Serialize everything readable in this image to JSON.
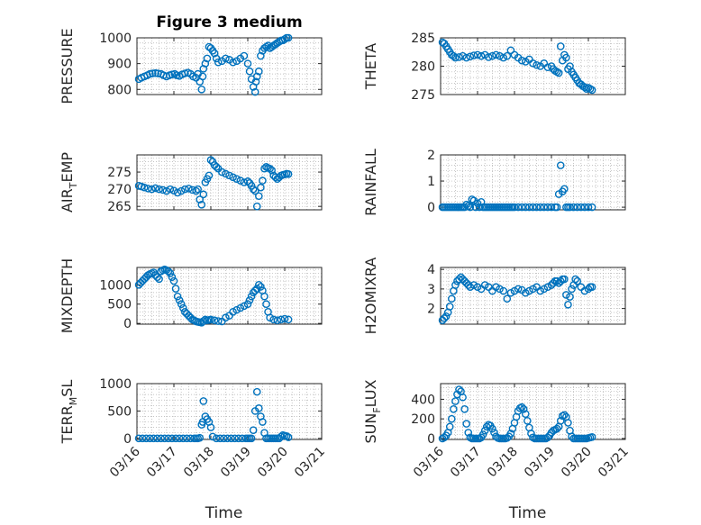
{
  "figure_title": "Figure 3 medium",
  "colors": {
    "marker": "#0072BD",
    "axis": "#262626",
    "grid": "#b0b0b0"
  },
  "chart_data": [
    {
      "type": "scatter",
      "id": "pressure",
      "title": "Figure 3 medium",
      "ylabel": [
        "PRESSURE"
      ],
      "ylim": [
        780,
        1000
      ],
      "yticks": [
        800,
        900,
        1000
      ],
      "xlim": [
        "03/16",
        "03/21"
      ],
      "xticks": [
        "03/16",
        "03/17",
        "03/18",
        "03/19",
        "03/20",
        "03/21"
      ],
      "xlabel": "",
      "grid": true,
      "marker": "circle",
      "x": [
        0.05,
        0.12,
        0.2,
        0.28,
        0.35,
        0.42,
        0.5,
        0.57,
        0.65,
        0.72,
        0.8,
        0.88,
        0.95,
        1.02,
        1.08,
        1.15,
        1.22,
        1.3,
        1.38,
        1.45,
        1.52,
        1.6,
        1.65,
        1.7,
        1.75,
        1.78,
        1.8,
        1.85,
        1.9,
        1.95,
        2.0,
        2.05,
        2.1,
        2.15,
        2.2,
        2.3,
        2.4,
        2.5,
        2.6,
        2.7,
        2.8,
        2.9,
        3.0,
        3.05,
        3.1,
        3.15,
        3.2,
        3.22,
        3.25,
        3.3,
        3.35,
        3.4,
        3.45,
        3.5,
        3.55,
        3.6,
        3.65,
        3.7,
        3.75,
        3.8,
        3.85,
        3.9,
        3.95,
        4.0,
        4.05,
        4.1
      ],
      "y": [
        840,
        845,
        850,
        855,
        860,
        862,
        863,
        862,
        860,
        855,
        850,
        855,
        858,
        860,
        855,
        852,
        858,
        862,
        865,
        860,
        850,
        845,
        860,
        830,
        800,
        850,
        880,
        900,
        920,
        965,
        960,
        950,
        940,
        920,
        905,
        910,
        920,
        915,
        905,
        910,
        920,
        930,
        900,
        870,
        840,
        810,
        790,
        830,
        850,
        870,
        930,
        950,
        960,
        965,
        970,
        960,
        965,
        970,
        975,
        980,
        985,
        990,
        990,
        995,
        1000,
        1000
      ]
    },
    {
      "type": "scatter",
      "id": "theta",
      "ylabel": [
        "THETA"
      ],
      "ylim": [
        275,
        285
      ],
      "yticks": [
        275,
        280,
        285
      ],
      "xlim": [
        "03/16",
        "03/21"
      ],
      "xticks": [
        "03/16",
        "03/17",
        "03/18",
        "03/19",
        "03/20",
        "03/21"
      ],
      "xlabel": "",
      "grid": true,
      "marker": "circle",
      "x": [
        0.05,
        0.1,
        0.15,
        0.2,
        0.25,
        0.3,
        0.35,
        0.4,
        0.5,
        0.6,
        0.7,
        0.8,
        0.9,
        1.0,
        1.1,
        1.2,
        1.3,
        1.4,
        1.5,
        1.6,
        1.7,
        1.8,
        1.9,
        2.0,
        2.1,
        2.2,
        2.3,
        2.4,
        2.5,
        2.6,
        2.7,
        2.8,
        2.9,
        3.0,
        3.05,
        3.1,
        3.15,
        3.2,
        3.25,
        3.3,
        3.35,
        3.4,
        3.45,
        3.5,
        3.55,
        3.6,
        3.65,
        3.7,
        3.75,
        3.8,
        3.85,
        3.9,
        3.95,
        4.0,
        4.05,
        4.1
      ],
      "y": [
        284.2,
        284.0,
        283.5,
        283.0,
        282.5,
        282.0,
        281.8,
        281.5,
        281.6,
        281.8,
        281.5,
        281.7,
        281.9,
        282.0,
        281.8,
        282.0,
        281.6,
        281.8,
        282.0,
        281.8,
        281.5,
        281.8,
        282.8,
        282.0,
        281.5,
        281.0,
        280.8,
        281.2,
        280.5,
        280.2,
        280.0,
        280.5,
        279.8,
        280.0,
        279.5,
        279.2,
        279.0,
        278.8,
        283.5,
        281.0,
        282.0,
        281.5,
        279.5,
        280.0,
        279.0,
        278.5,
        278.0,
        277.5,
        277.0,
        276.8,
        276.5,
        276.3,
        276.0,
        276.2,
        276.0,
        275.8
      ]
    },
    {
      "type": "scatter",
      "id": "air_temp",
      "ylabel": [
        "AIR",
        "T",
        "EMP"
      ],
      "ylim": [
        264,
        280
      ],
      "yticks": [
        265,
        270,
        275
      ],
      "xlim": [
        "03/16",
        "03/21"
      ],
      "xticks": [
        "03/16",
        "03/17",
        "03/18",
        "03/19",
        "03/20",
        "03/21"
      ],
      "xlabel": "",
      "grid": true,
      "marker": "circle",
      "x": [
        0.05,
        0.12,
        0.2,
        0.3,
        0.4,
        0.5,
        0.6,
        0.7,
        0.8,
        0.9,
        1.0,
        1.1,
        1.2,
        1.3,
        1.4,
        1.5,
        1.6,
        1.65,
        1.7,
        1.75,
        1.8,
        1.85,
        1.9,
        1.95,
        2.0,
        2.05,
        2.1,
        2.15,
        2.2,
        2.3,
        2.4,
        2.5,
        2.6,
        2.7,
        2.8,
        2.9,
        3.0,
        3.05,
        3.1,
        3.15,
        3.2,
        3.25,
        3.3,
        3.35,
        3.4,
        3.45,
        3.5,
        3.55,
        3.6,
        3.65,
        3.7,
        3.75,
        3.8,
        3.85,
        3.9,
        3.95,
        4.0,
        4.05,
        4.1
      ],
      "y": [
        271.0,
        270.8,
        270.5,
        270.2,
        270.0,
        270.3,
        270.0,
        269.8,
        269.5,
        270.0,
        269.6,
        269.0,
        269.5,
        270.0,
        270.2,
        269.8,
        269.5,
        270.0,
        267.0,
        265.5,
        268.5,
        272.0,
        273.0,
        274.0,
        278.5,
        278.0,
        277.0,
        276.5,
        276.0,
        275.0,
        274.5,
        274.0,
        273.5,
        273.0,
        272.5,
        272.0,
        272.3,
        271.8,
        271.0,
        270.0,
        269.5,
        265.0,
        268.0,
        270.5,
        272.5,
        276.0,
        276.5,
        276.2,
        276.0,
        275.5,
        274.0,
        273.5,
        273.0,
        273.5,
        274.0,
        274.2,
        274.3,
        274.5,
        274.4
      ]
    },
    {
      "type": "scatter",
      "id": "rainfall",
      "ylabel": [
        "RAINFALL"
      ],
      "ylim": [
        -0.1,
        2
      ],
      "yticks": [
        0,
        1,
        2
      ],
      "xlim": [
        "03/16",
        "03/21"
      ],
      "xticks": [
        "03/16",
        "03/17",
        "03/18",
        "03/19",
        "03/20",
        "03/21"
      ],
      "xlabel": "",
      "grid": true,
      "marker": "circle",
      "x": [
        0.05,
        0.1,
        0.15,
        0.2,
        0.25,
        0.3,
        0.35,
        0.4,
        0.45,
        0.5,
        0.55,
        0.6,
        0.65,
        0.7,
        0.75,
        0.8,
        0.85,
        0.9,
        0.95,
        1.0,
        1.05,
        1.1,
        1.15,
        1.2,
        1.25,
        1.3,
        1.35,
        1.4,
        1.45,
        1.5,
        1.55,
        1.6,
        1.65,
        1.7,
        1.75,
        1.8,
        1.85,
        1.9,
        1.95,
        2.0,
        2.1,
        2.2,
        2.3,
        2.4,
        2.5,
        2.6,
        2.7,
        2.8,
        2.9,
        3.0,
        3.1,
        3.15,
        3.2,
        3.25,
        3.3,
        3.35,
        3.4,
        3.45,
        3.5,
        3.6,
        3.7,
        3.8,
        3.9,
        4.0,
        4.1
      ],
      "y": [
        0,
        0,
        0,
        0,
        0,
        0,
        0,
        0,
        0,
        0,
        0,
        0,
        0,
        0.1,
        0.05,
        0,
        0.3,
        0.25,
        0,
        0.15,
        0,
        0.2,
        0,
        0,
        0,
        0,
        0,
        0,
        0,
        0,
        0,
        0,
        0,
        0,
        0,
        0,
        0,
        0,
        0,
        0,
        0,
        0,
        0,
        0,
        0,
        0,
        0,
        0,
        0,
        0,
        0,
        0,
        0.5,
        1.6,
        0.6,
        0.7,
        0,
        0,
        0,
        0,
        0,
        0,
        0,
        0,
        0
      ]
    },
    {
      "type": "scatter",
      "id": "mixdepth",
      "ylabel": [
        "MIXDEPTH"
      ],
      "ylim": [
        -20,
        1450
      ],
      "yticks": [
        0,
        500,
        1000
      ],
      "xlim": [
        "03/16",
        "03/21"
      ],
      "xticks": [
        "03/16",
        "03/17",
        "03/18",
        "03/19",
        "03/20",
        "03/21"
      ],
      "xlabel": "",
      "grid": true,
      "marker": "circle",
      "x": [
        0.05,
        0.1,
        0.15,
        0.2,
        0.25,
        0.3,
        0.35,
        0.4,
        0.45,
        0.5,
        0.55,
        0.6,
        0.65,
        0.7,
        0.75,
        0.8,
        0.85,
        0.9,
        0.95,
        1.0,
        1.05,
        1.1,
        1.15,
        1.2,
        1.25,
        1.3,
        1.35,
        1.4,
        1.45,
        1.5,
        1.55,
        1.6,
        1.65,
        1.7,
        1.75,
        1.8,
        1.85,
        1.9,
        1.95,
        2.0,
        2.1,
        2.2,
        2.3,
        2.4,
        2.5,
        2.6,
        2.7,
        2.8,
        2.9,
        3.0,
        3.05,
        3.1,
        3.15,
        3.2,
        3.25,
        3.3,
        3.35,
        3.4,
        3.45,
        3.5,
        3.55,
        3.6,
        3.7,
        3.8,
        3.9,
        4.0,
        4.1
      ],
      "y": [
        1000,
        1050,
        1100,
        1150,
        1200,
        1250,
        1280,
        1300,
        1320,
        1250,
        1200,
        1150,
        1350,
        1380,
        1400,
        1380,
        1350,
        1300,
        1200,
        1100,
        900,
        700,
        600,
        500,
        400,
        300,
        250,
        200,
        150,
        100,
        80,
        50,
        40,
        30,
        20,
        60,
        100,
        80,
        90,
        100,
        80,
        60,
        50,
        150,
        200,
        300,
        350,
        400,
        450,
        500,
        600,
        700,
        800,
        850,
        900,
        1000,
        950,
        850,
        700,
        500,
        300,
        150,
        100,
        80,
        100,
        120,
        100
      ]
    },
    {
      "type": "scatter",
      "id": "h2omixra",
      "ylabel": [
        "H2OMIXRA"
      ],
      "ylim": [
        1.2,
        4.1
      ],
      "yticks": [
        2,
        3,
        4
      ],
      "xlim": [
        "03/16",
        "03/21"
      ],
      "xticks": [
        "03/16",
        "03/17",
        "03/18",
        "03/19",
        "03/20",
        "03/21"
      ],
      "xlabel": "",
      "grid": true,
      "marker": "circle",
      "x": [
        0.05,
        0.1,
        0.15,
        0.2,
        0.25,
        0.3,
        0.35,
        0.4,
        0.45,
        0.5,
        0.55,
        0.6,
        0.65,
        0.7,
        0.75,
        0.8,
        0.9,
        1.0,
        1.1,
        1.2,
        1.3,
        1.4,
        1.5,
        1.6,
        1.7,
        1.8,
        1.9,
        2.0,
        2.1,
        2.2,
        2.3,
        2.4,
        2.5,
        2.6,
        2.7,
        2.8,
        2.9,
        3.0,
        3.05,
        3.1,
        3.15,
        3.2,
        3.25,
        3.3,
        3.35,
        3.4,
        3.45,
        3.5,
        3.55,
        3.6,
        3.65,
        3.7,
        3.8,
        3.9,
        4.0,
        4.05,
        4.1
      ],
      "y": [
        1.4,
        1.5,
        1.6,
        1.8,
        2.1,
        2.5,
        2.9,
        3.2,
        3.4,
        3.5,
        3.6,
        3.5,
        3.4,
        3.3,
        3.2,
        3.1,
        3.2,
        3.1,
        3.0,
        3.2,
        3.1,
        2.9,
        3.1,
        3.0,
        2.9,
        2.5,
        2.8,
        2.9,
        3.0,
        2.95,
        2.8,
        2.9,
        3.0,
        3.1,
        2.9,
        3.0,
        3.1,
        3.2,
        3.3,
        3.4,
        3.4,
        3.3,
        3.4,
        3.5,
        3.5,
        2.7,
        2.2,
        2.6,
        3.0,
        3.2,
        3.5,
        3.4,
        3.1,
        2.9,
        3.0,
        3.1,
        3.1
      ]
    },
    {
      "type": "scatter",
      "id": "terr_msl",
      "ylabel": [
        "TERR",
        "M",
        "SL"
      ],
      "ylim": [
        -20,
        1000
      ],
      "yticks": [
        0,
        500,
        1000
      ],
      "xlim": [
        "03/16",
        "03/21"
      ],
      "xticks": [
        "03/16",
        "03/17",
        "03/18",
        "03/19",
        "03/20",
        "03/21"
      ],
      "xlabel": "Time",
      "grid": true,
      "marker": "circle",
      "x": [
        0.05,
        0.15,
        0.25,
        0.35,
        0.45,
        0.55,
        0.65,
        0.75,
        0.85,
        0.95,
        1.05,
        1.15,
        1.25,
        1.35,
        1.45,
        1.55,
        1.6,
        1.65,
        1.7,
        1.75,
        1.78,
        1.8,
        1.85,
        1.9,
        1.95,
        2.0,
        2.05,
        2.15,
        2.25,
        2.35,
        2.45,
        2.55,
        2.65,
        2.75,
        2.85,
        2.95,
        3.0,
        3.05,
        3.1,
        3.15,
        3.2,
        3.25,
        3.3,
        3.35,
        3.4,
        3.45,
        3.5,
        3.55,
        3.6,
        3.65,
        3.7,
        3.75,
        3.8,
        3.85,
        3.9,
        3.95,
        4.0,
        4.05,
        4.1
      ],
      "y": [
        0,
        0,
        0,
        0,
        0,
        0,
        0,
        0,
        0,
        0,
        0,
        0,
        0,
        0,
        0,
        0,
        0,
        0,
        10,
        250,
        300,
        680,
        400,
        350,
        300,
        200,
        30,
        0,
        0,
        0,
        0,
        0,
        0,
        0,
        0,
        0,
        0,
        0,
        0,
        150,
        500,
        850,
        550,
        400,
        300,
        100,
        0,
        0,
        0,
        0,
        0,
        0,
        0,
        0,
        30,
        60,
        50,
        40,
        20
      ]
    },
    {
      "type": "scatter",
      "id": "sun_flux",
      "ylabel": [
        "SUN",
        "F",
        "LUX"
      ],
      "ylim": [
        -10,
        560
      ],
      "yticks": [
        0,
        200,
        400
      ],
      "xlim": [
        "03/16",
        "03/21"
      ],
      "xticks": [
        "03/16",
        "03/17",
        "03/18",
        "03/19",
        "03/20",
        "03/21"
      ],
      "xlabel": "Time",
      "grid": true,
      "marker": "circle",
      "x": [
        0.05,
        0.1,
        0.15,
        0.2,
        0.25,
        0.3,
        0.35,
        0.4,
        0.45,
        0.5,
        0.55,
        0.6,
        0.65,
        0.7,
        0.75,
        0.8,
        0.85,
        0.9,
        0.95,
        1.0,
        1.05,
        1.1,
        1.15,
        1.2,
        1.25,
        1.3,
        1.35,
        1.4,
        1.45,
        1.5,
        1.55,
        1.6,
        1.65,
        1.7,
        1.75,
        1.8,
        1.85,
        1.9,
        1.95,
        2.0,
        2.05,
        2.1,
        2.15,
        2.2,
        2.25,
        2.3,
        2.35,
        2.4,
        2.45,
        2.5,
        2.55,
        2.6,
        2.65,
        2.7,
        2.75,
        2.8,
        2.85,
        2.9,
        2.95,
        3.0,
        3.05,
        3.1,
        3.15,
        3.2,
        3.25,
        3.3,
        3.35,
        3.4,
        3.45,
        3.5,
        3.55,
        3.6,
        3.65,
        3.7,
        3.75,
        3.8,
        3.85,
        3.9,
        3.95,
        4.0,
        4.05,
        4.1
      ],
      "y": [
        0,
        10,
        30,
        60,
        120,
        200,
        300,
        380,
        450,
        500,
        480,
        420,
        300,
        150,
        60,
        10,
        0,
        0,
        0,
        0,
        0,
        10,
        40,
        80,
        120,
        140,
        130,
        100,
        60,
        20,
        5,
        0,
        0,
        0,
        0,
        5,
        20,
        50,
        100,
        160,
        220,
        280,
        310,
        320,
        300,
        250,
        180,
        110,
        50,
        10,
        0,
        0,
        0,
        0,
        0,
        0,
        0,
        10,
        30,
        60,
        80,
        90,
        100,
        120,
        180,
        230,
        240,
        220,
        160,
        80,
        20,
        0,
        0,
        0,
        0,
        0,
        0,
        0,
        0,
        5,
        10,
        15
      ]
    }
  ]
}
